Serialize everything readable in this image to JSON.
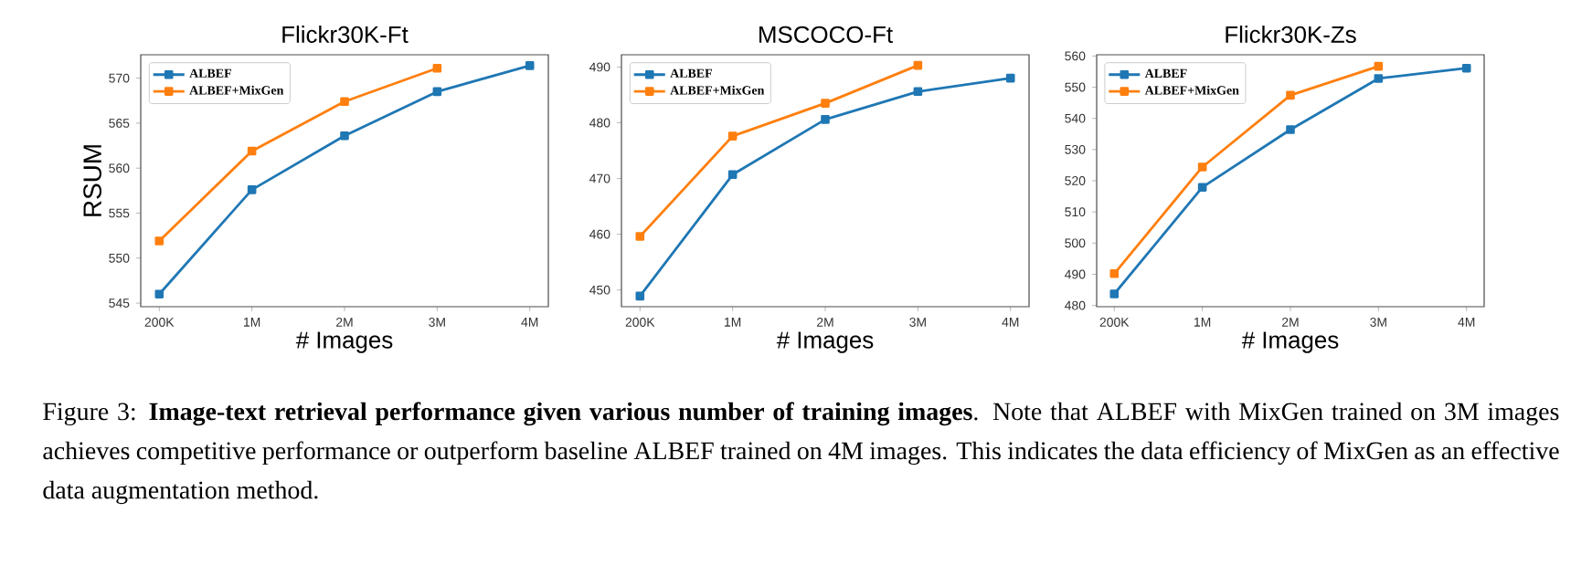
{
  "chart_data": [
    {
      "type": "line",
      "title": "Flickr30K-Ft",
      "xlabel": "# Images",
      "ylabel": "RSUM",
      "categories": [
        "200K",
        "1M",
        "2M",
        "3M",
        "4M"
      ],
      "series": [
        {
          "name": "ALBEF",
          "color": "#1f77b4",
          "values": [
            546.0,
            557.6,
            563.6,
            568.5,
            571.4
          ]
        },
        {
          "name": "ALBEF+MixGen",
          "color": "#ff7f0e",
          "values": [
            551.9,
            561.9,
            567.4,
            571.1,
            null
          ]
        }
      ],
      "ylim": [
        544.6,
        572.6
      ],
      "yticks": [
        545,
        550,
        555,
        560,
        565,
        570
      ],
      "legend": "top left",
      "marker": "square",
      "grid": false
    },
    {
      "type": "line",
      "title": "MSCOCO-Ft",
      "xlabel": "# Images",
      "categories": [
        "200K",
        "1M",
        "2M",
        "3M",
        "4M"
      ],
      "series": [
        {
          "name": "ALBEF",
          "color": "#1f77b4",
          "values": [
            448.9,
            470.7,
            480.6,
            485.6,
            488.0
          ]
        },
        {
          "name": "ALBEF+MixGen",
          "color": "#ff7f0e",
          "values": [
            459.6,
            477.6,
            483.5,
            490.3,
            null
          ]
        }
      ],
      "ylim": [
        447.0,
        492.2
      ],
      "yticks": [
        450,
        460,
        470,
        480,
        490
      ],
      "legend": "top left",
      "marker": "square",
      "grid": false
    },
    {
      "type": "line",
      "title": "Flickr30K-Zs",
      "xlabel": "# Images",
      "categories": [
        "200K",
        "1M",
        "2M",
        "3M",
        "4M"
      ],
      "series": [
        {
          "name": "ALBEF",
          "color": "#1f77b4",
          "values": [
            483.7,
            517.9,
            536.4,
            552.8,
            556.1
          ]
        },
        {
          "name": "ALBEF+MixGen",
          "color": "#ff7f0e",
          "values": [
            490.2,
            524.4,
            547.4,
            556.7,
            null
          ]
        }
      ],
      "ylim": [
        479.6,
        560.4
      ],
      "yticks": [
        480,
        490,
        500,
        510,
        520,
        530,
        540,
        550,
        560
      ],
      "legend": "top left",
      "marker": "square",
      "grid": false,
      "annotations": [
        "Figure 3: **Image-text retrieval performance given various number of training images**. Note that ALBEF with MixGen trained on 3M images achieves competitive performance or outperform baseline ALBEF trained on 4M images. This indicates the data efficiency of MixGen as an effective data augmentation method."
      ]
    }
  ]
}
